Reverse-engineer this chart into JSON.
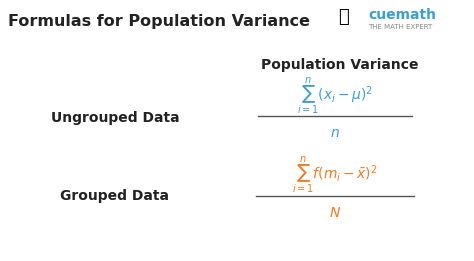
{
  "bg_color": "#ffffff",
  "title": "Formulas for Population Variance",
  "title_color": "#222222",
  "title_fontsize": 11.5,
  "header": "Population Variance",
  "header_color": "#222222",
  "header_fontsize": 10,
  "label1": "Ungrouped Data",
  "label2": "Grouped Data",
  "label_color": "#222222",
  "label_fontsize": 10,
  "formula_color_blue": "#3a9fd4",
  "formula_color_orange": "#f47920",
  "line_color": "#555555",
  "cuemath_text": "cuemath",
  "cuemath_subtext": "THE MATH EXPERT",
  "cuemath_color": "#3a9fd4",
  "cuemath_subtext_color": "#888888",
  "rocket_color": "#3a9fd4"
}
